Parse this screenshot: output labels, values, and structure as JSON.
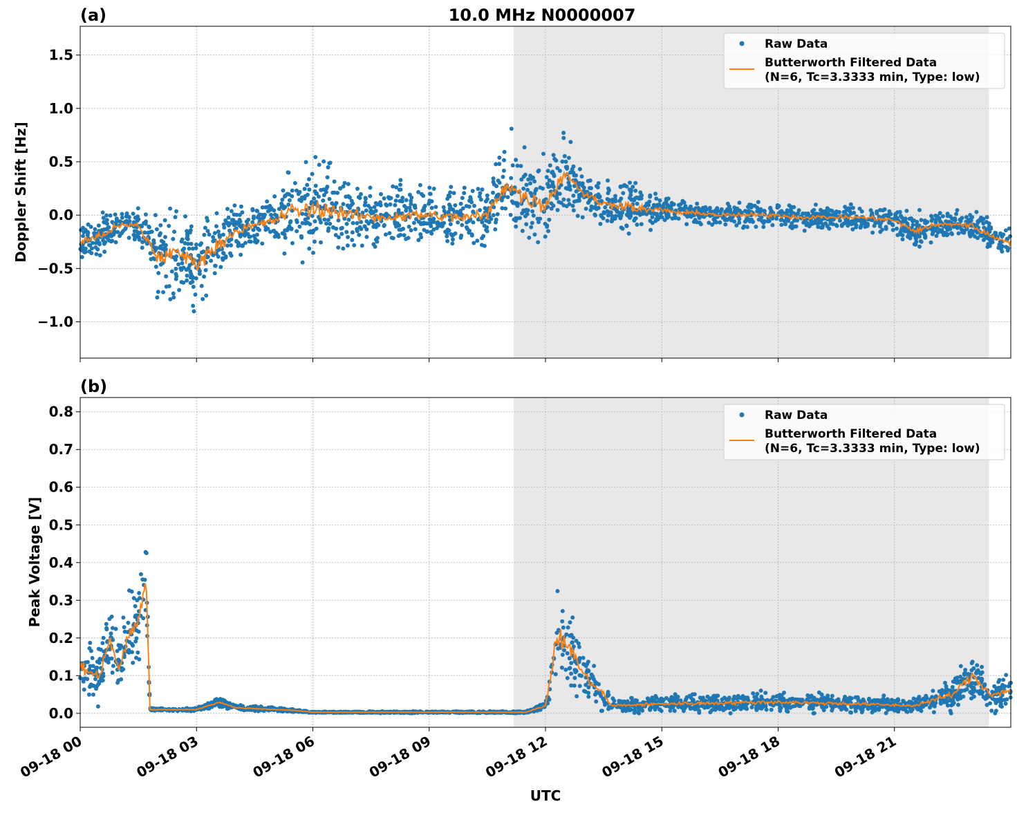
{
  "chart_data": {
    "type": "scatter",
    "title": "10.0 MHz N0000007",
    "xlabel": "UTC",
    "x_range_hours": [
      0,
      24
    ],
    "x_ticks": [
      {
        "h": 0,
        "label": "09-18 00"
      },
      {
        "h": 3,
        "label": "09-18 03"
      },
      {
        "h": 6,
        "label": "09-18 06"
      },
      {
        "h": 9,
        "label": "09-18 09"
      },
      {
        "h": 12,
        "label": "09-18 12"
      },
      {
        "h": 15,
        "label": "09-18 15"
      },
      {
        "h": 18,
        "label": "09-18 18"
      },
      {
        "h": 21,
        "label": "09-18 21"
      }
    ],
    "shaded_region_hours": [
      11.18,
      23.44
    ],
    "grid": true,
    "colors": {
      "raw": "#1f77b4",
      "filtered": "#ff7f0e",
      "shade": "#e8e8e8"
    },
    "panels": [
      {
        "label": "(a)",
        "ylabel": "Doppler Shift [Hz]",
        "ylim": [
          -1.34,
          1.77
        ],
        "yticks": [
          {
            "v": -1.0,
            "label": "−1.0"
          },
          {
            "v": -0.5,
            "label": "−0.5"
          },
          {
            "v": 0.0,
            "label": "0.0"
          },
          {
            "v": 0.5,
            "label": "0.5"
          },
          {
            "v": 1.0,
            "label": "1.0"
          },
          {
            "v": 1.5,
            "label": "1.5"
          }
        ],
        "legend": {
          "position": "top-right",
          "raw": "Raw Data",
          "filtered_line1": "Butterworth Filtered Data",
          "filtered_line2": "(N=6, Tc=3.3333 min, Type: low)"
        },
        "series": {
          "x": [
            0,
            0.5,
            1,
            1.5,
            2,
            2.5,
            3,
            3.5,
            4,
            4.5,
            5,
            5.5,
            6,
            6.5,
            7,
            7.5,
            8,
            8.5,
            9,
            9.5,
            10,
            10.5,
            11,
            11.5,
            12,
            12.5,
            13,
            13.5,
            14,
            14.5,
            15,
            15.5,
            16,
            16.5,
            17,
            17.5,
            18,
            18.5,
            19,
            19.5,
            20,
            20.5,
            21,
            21.5,
            22,
            22.5,
            23,
            23.5,
            24
          ],
          "filtered": [
            -0.25,
            -0.2,
            -0.1,
            -0.1,
            -0.4,
            -0.35,
            -0.45,
            -0.3,
            -0.15,
            -0.1,
            -0.05,
            0.05,
            0.05,
            0.05,
            0,
            -0.02,
            -0.02,
            0,
            0,
            -0.02,
            -0.02,
            0,
            0.3,
            0.15,
            0.1,
            0.4,
            0.2,
            0.1,
            0.1,
            0.05,
            0.05,
            0.02,
            0.02,
            0,
            0,
            0,
            0,
            -0.02,
            -0.02,
            -0.02,
            -0.02,
            -0.03,
            -0.05,
            -0.15,
            -0.1,
            -0.08,
            -0.1,
            -0.2,
            -0.25
          ],
          "raw_spread": [
            0.2,
            0.2,
            0.2,
            0.2,
            0.4,
            0.45,
            0.45,
            0.35,
            0.25,
            0.25,
            0.25,
            0.45,
            0.5,
            0.45,
            0.3,
            0.3,
            0.3,
            0.3,
            0.3,
            0.3,
            0.3,
            0.3,
            0.5,
            0.45,
            0.45,
            0.35,
            0.2,
            0.2,
            0.3,
            0.2,
            0.12,
            0.12,
            0.12,
            0.12,
            0.12,
            0.12,
            0.12,
            0.12,
            0.12,
            0.12,
            0.12,
            0.12,
            0.12,
            0.18,
            0.15,
            0.15,
            0.15,
            0.15,
            0.15
          ]
        }
      },
      {
        "label": "(b)",
        "ylabel": "Peak Voltage [V]",
        "ylim": [
          -0.037,
          0.838
        ],
        "yticks": [
          {
            "v": 0.0,
            "label": "0.0"
          },
          {
            "v": 0.1,
            "label": "0.1"
          },
          {
            "v": 0.2,
            "label": "0.2"
          },
          {
            "v": 0.3,
            "label": "0.3"
          },
          {
            "v": 0.4,
            "label": "0.4"
          },
          {
            "v": 0.5,
            "label": "0.5"
          },
          {
            "v": 0.6,
            "label": "0.6"
          },
          {
            "v": 0.7,
            "label": "0.7"
          },
          {
            "v": 0.8,
            "label": "0.8"
          }
        ],
        "legend": {
          "position": "top-right",
          "raw": "Raw Data",
          "filtered_line1": "Butterworth Filtered Data",
          "filtered_line2": "(N=6, Tc=3.3333 min, Type: low)"
        },
        "series": {
          "x": [
            0,
            0.5,
            0.75,
            1,
            1.25,
            1.5,
            1.7,
            1.8,
            3,
            3.6,
            4,
            5.5,
            6,
            11.5,
            12,
            12.3,
            12.6,
            13,
            13.5,
            13.7,
            15,
            18,
            20,
            21.5,
            22.5,
            23,
            23.5,
            24
          ],
          "filtered": [
            0.12,
            0.1,
            0.2,
            0.12,
            0.2,
            0.25,
            0.35,
            0.01,
            0.01,
            0.03,
            0.015,
            0.008,
            0.003,
            0.003,
            0.02,
            0.2,
            0.18,
            0.1,
            0.05,
            0.02,
            0.025,
            0.03,
            0.025,
            0.02,
            0.05,
            0.1,
            0.05,
            0.06
          ],
          "raw_spread": [
            0.1,
            0.08,
            0.12,
            0.1,
            0.12,
            0.15,
            0.2,
            0.005,
            0.005,
            0.015,
            0.008,
            0.005,
            0.002,
            0.003,
            0.01,
            0.14,
            0.12,
            0.08,
            0.05,
            0.02,
            0.025,
            0.03,
            0.025,
            0.02,
            0.05,
            0.07,
            0.05,
            0.05
          ]
        }
      }
    ]
  }
}
